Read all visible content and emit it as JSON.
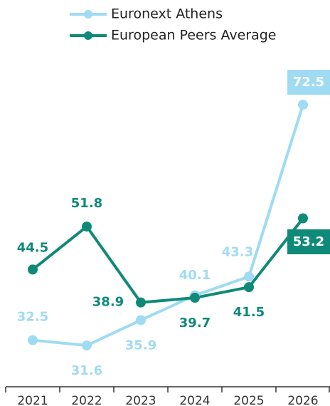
{
  "chart_data": {
    "type": "line",
    "categories": [
      "2021",
      "2022",
      "2023",
      "2024",
      "2025",
      "2026"
    ],
    "series": [
      {
        "name": "Euronext Athens",
        "color": "#9fdbf3",
        "values": [
          32.5,
          31.6,
          35.9,
          40.1,
          43.3,
          72.5
        ]
      },
      {
        "name": "European Peers Average",
        "color": "#0f8a78",
        "values": [
          44.5,
          51.8,
          38.9,
          39.7,
          41.5,
          53.2
        ]
      }
    ]
  }
}
